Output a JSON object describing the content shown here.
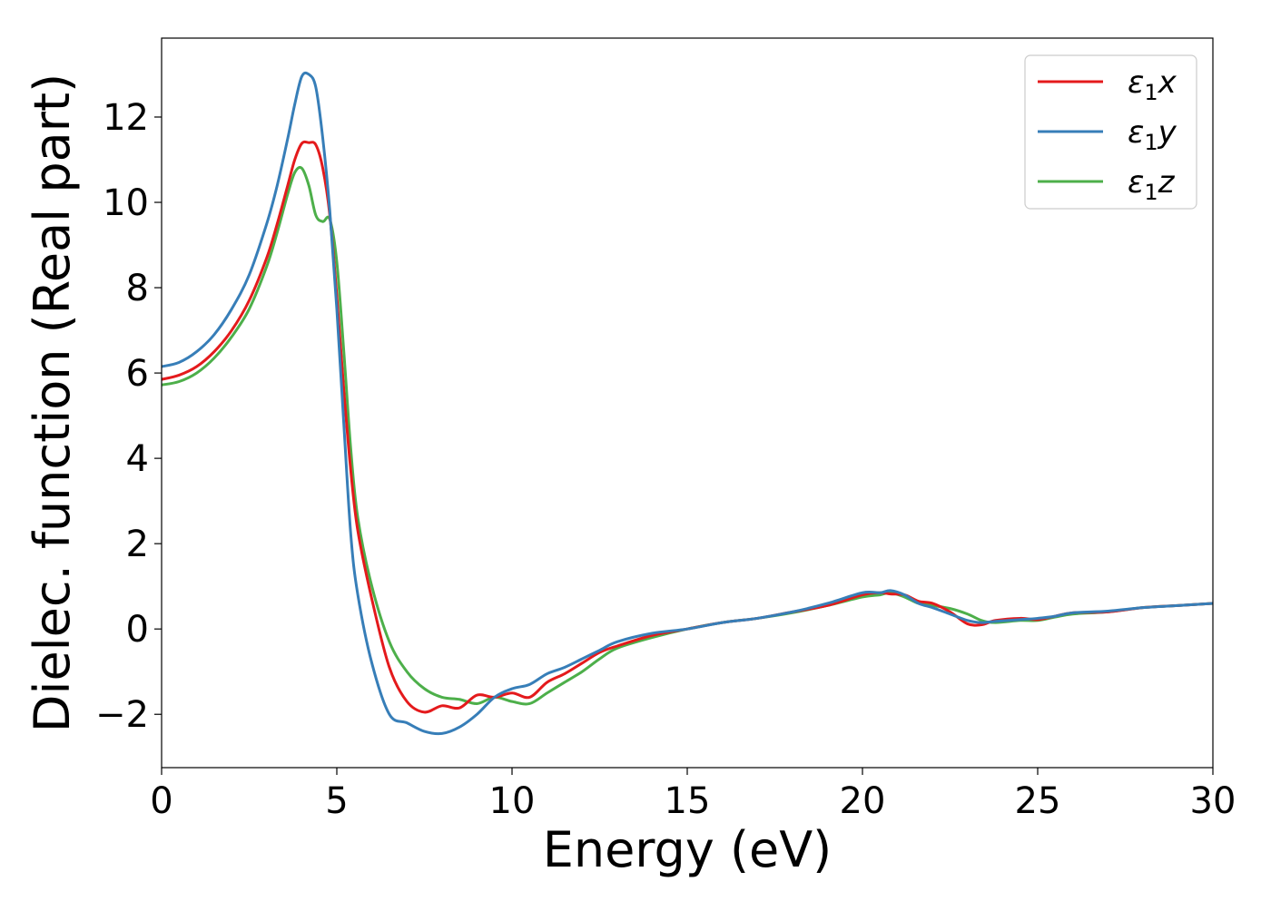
{
  "chart_data": {
    "type": "line",
    "title": "",
    "xlabel": "Energy (eV)",
    "ylabel": "Dielec. function (Real part)",
    "xlim": [
      0,
      30
    ],
    "ylim": [
      -3.25,
      13.85
    ],
    "xticks": [
      0,
      5,
      10,
      15,
      20,
      25,
      30
    ],
    "xtick_labels": [
      "0",
      "5",
      "10",
      "15",
      "20",
      "25",
      "30"
    ],
    "yticks": [
      -2,
      0,
      2,
      4,
      6,
      8,
      10,
      12
    ],
    "ytick_labels": [
      "−2",
      "0",
      "2",
      "4",
      "6",
      "8",
      "10",
      "12"
    ],
    "grid": false,
    "legend_position": "top-right",
    "series": [
      {
        "name": "ε1x",
        "label_base": "ε",
        "label_sub": "1",
        "label_var": "x",
        "color": "#e41a1c",
        "x": [
          0,
          0.5,
          1,
          1.5,
          2,
          2.5,
          3,
          3.3,
          3.6,
          3.8,
          4.0,
          4.2,
          4.4,
          4.6,
          4.8,
          5.0,
          5.2,
          5.4,
          5.6,
          6.0,
          6.5,
          7.0,
          7.5,
          8.0,
          8.5,
          9.0,
          9.5,
          10.0,
          10.5,
          11.0,
          11.5,
          12.0,
          12.5,
          13.0,
          14.0,
          15.0,
          16.0,
          17.0,
          18.0,
          19.0,
          20.0,
          20.5,
          20.8,
          21.2,
          21.6,
          22.0,
          22.5,
          23.0,
          23.4,
          23.8,
          24.5,
          25.0,
          25.5,
          26.0,
          27.0,
          28.0,
          29.0,
          30.0
        ],
        "y": [
          5.85,
          5.95,
          6.15,
          6.5,
          7.0,
          7.7,
          8.7,
          9.5,
          10.4,
          11.0,
          11.38,
          11.4,
          11.35,
          10.8,
          9.7,
          7.8,
          5.6,
          3.7,
          2.3,
          0.7,
          -0.9,
          -1.7,
          -1.95,
          -1.8,
          -1.85,
          -1.55,
          -1.6,
          -1.5,
          -1.6,
          -1.25,
          -1.05,
          -0.8,
          -0.55,
          -0.4,
          -0.15,
          0.0,
          0.15,
          0.25,
          0.4,
          0.55,
          0.8,
          0.85,
          0.82,
          0.8,
          0.65,
          0.6,
          0.4,
          0.12,
          0.1,
          0.2,
          0.25,
          0.22,
          0.3,
          0.38,
          0.4,
          0.5,
          0.55,
          0.6
        ]
      },
      {
        "name": "ε1y",
        "label_base": "ε",
        "label_sub": "1",
        "label_var": "y",
        "color": "#377eb8",
        "x": [
          0,
          0.5,
          1,
          1.5,
          2,
          2.5,
          3,
          3.3,
          3.6,
          3.8,
          4.0,
          4.2,
          4.4,
          4.6,
          4.8,
          5.0,
          5.2,
          5.4,
          5.6,
          6.0,
          6.5,
          7.0,
          7.5,
          8.0,
          8.5,
          9.0,
          9.5,
          10.0,
          10.5,
          11.0,
          11.5,
          12.0,
          12.5,
          13.0,
          14.0,
          15.0,
          16.0,
          17.0,
          18.0,
          19.0,
          20.0,
          20.5,
          20.8,
          21.2,
          21.6,
          22.0,
          22.5,
          23.0,
          23.4,
          23.8,
          24.5,
          25.0,
          25.5,
          26.0,
          27.0,
          28.0,
          29.0,
          30.0
        ],
        "y": [
          6.15,
          6.25,
          6.5,
          6.9,
          7.5,
          8.3,
          9.5,
          10.4,
          11.5,
          12.3,
          12.95,
          13.0,
          12.7,
          11.5,
          9.8,
          7.5,
          4.8,
          2.2,
          0.8,
          -0.8,
          -2.0,
          -2.2,
          -2.4,
          -2.45,
          -2.3,
          -2.0,
          -1.6,
          -1.4,
          -1.3,
          -1.05,
          -0.9,
          -0.7,
          -0.5,
          -0.3,
          -0.1,
          0.0,
          0.15,
          0.25,
          0.4,
          0.6,
          0.85,
          0.85,
          0.9,
          0.8,
          0.6,
          0.5,
          0.35,
          0.2,
          0.15,
          0.18,
          0.22,
          0.25,
          0.3,
          0.38,
          0.42,
          0.5,
          0.55,
          0.6
        ]
      },
      {
        "name": "ε1z",
        "label_base": "ε",
        "label_sub": "1",
        "label_var": "z",
        "color": "#4daf4a",
        "x": [
          0,
          0.5,
          1,
          1.5,
          2,
          2.5,
          3,
          3.3,
          3.6,
          3.8,
          4.0,
          4.2,
          4.4,
          4.6,
          4.8,
          5.0,
          5.2,
          5.4,
          5.6,
          6.0,
          6.5,
          7.0,
          7.5,
          8.0,
          8.5,
          9.0,
          9.5,
          10.0,
          10.5,
          11.0,
          11.5,
          12.0,
          12.5,
          13.0,
          14.0,
          15.0,
          16.0,
          17.0,
          18.0,
          19.0,
          20.0,
          20.5,
          20.8,
          21.2,
          21.6,
          22.0,
          22.5,
          23.0,
          23.4,
          23.8,
          24.5,
          25.0,
          25.5,
          26.0,
          27.0,
          28.0,
          29.0,
          30.0
        ],
        "y": [
          5.72,
          5.8,
          6.0,
          6.35,
          6.85,
          7.5,
          8.5,
          9.3,
          10.2,
          10.7,
          10.8,
          10.4,
          9.7,
          9.55,
          9.6,
          8.6,
          6.5,
          4.2,
          2.6,
          1.0,
          -0.3,
          -1.0,
          -1.4,
          -1.6,
          -1.65,
          -1.75,
          -1.6,
          -1.7,
          -1.75,
          -1.5,
          -1.25,
          -1.0,
          -0.7,
          -0.45,
          -0.2,
          0.0,
          0.15,
          0.25,
          0.38,
          0.55,
          0.75,
          0.8,
          0.85,
          0.75,
          0.6,
          0.55,
          0.48,
          0.35,
          0.2,
          0.15,
          0.2,
          0.2,
          0.28,
          0.35,
          0.4,
          0.5,
          0.55,
          0.6
        ]
      }
    ]
  }
}
